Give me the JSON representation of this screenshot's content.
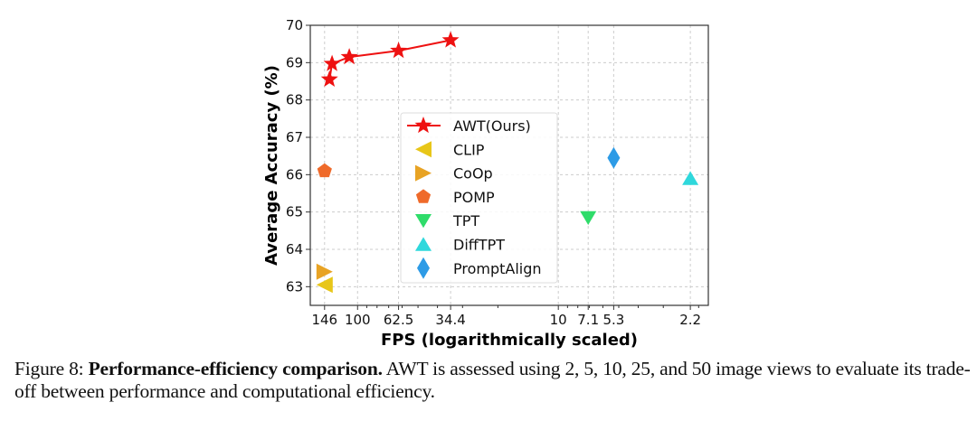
{
  "chart_data": {
    "type": "scatter",
    "xlabel": "FPS (logarithmically scaled)",
    "ylabel": "Average Accuracy (%)",
    "xscale": "log",
    "x_reversed": true,
    "xlim": [
      172,
      1.79
    ],
    "ylim": [
      62.5,
      70
    ],
    "xticks": [
      146,
      100,
      62.5,
      34.4,
      10,
      7.1,
      5.3,
      2.2
    ],
    "xtick_labels": [
      "146",
      "100",
      "62.5",
      "34.4",
      "10",
      "7.1",
      "5.3",
      "2.2"
    ],
    "yticks": [
      63,
      64,
      65,
      66,
      67,
      68,
      69,
      70
    ],
    "grid": true,
    "legend_position": "center",
    "series": [
      {
        "name": "AWT(Ours)",
        "marker": "star",
        "line": true,
        "color": "#ee1111",
        "x": [
          138,
          134,
          110,
          62.5,
          34.4
        ],
        "y": [
          68.55,
          68.97,
          69.15,
          69.32,
          69.6
        ]
      },
      {
        "name": "CLIP",
        "marker": "triangle-left",
        "color": "#e8c619",
        "x": [
          146
        ],
        "y": [
          63.05
        ]
      },
      {
        "name": "CoOp",
        "marker": "triangle-right",
        "color": "#e8a324",
        "x": [
          146
        ],
        "y": [
          63.4
        ]
      },
      {
        "name": "POMP",
        "marker": "pentagon",
        "color": "#ef6a2a",
        "x": [
          146
        ],
        "y": [
          66.1
        ]
      },
      {
        "name": "TPT",
        "marker": "triangle-down",
        "color": "#2fdc6a",
        "x": [
          7.1
        ],
        "y": [
          64.85
        ]
      },
      {
        "name": "DiffTPT",
        "marker": "triangle-up",
        "color": "#2fd8dc",
        "x": [
          2.2
        ],
        "y": [
          65.9
        ]
      },
      {
        "name": "PromptAlign",
        "marker": "diamond",
        "color": "#2d9be6",
        "x": [
          5.3
        ],
        "y": [
          66.45
        ]
      }
    ]
  },
  "caption": {
    "label": "Figure 8:",
    "title": "Performance-efficiency comparison.",
    "text": "AWT is assessed using 2, 5, 10, 25, and 50 image views to evaluate its trade-off between performance and computational efficiency."
  }
}
